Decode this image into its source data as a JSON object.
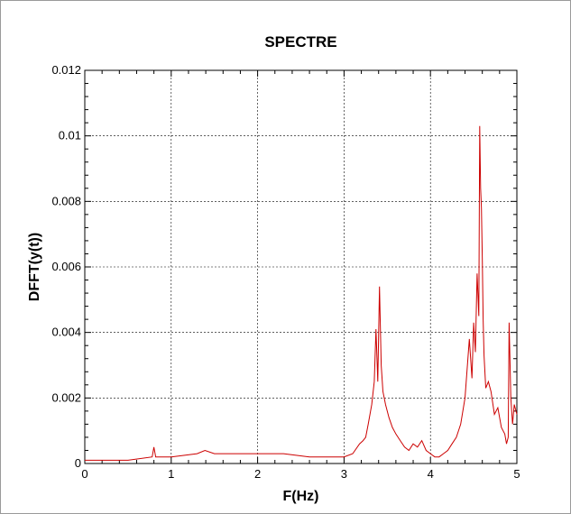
{
  "chart_data": {
    "type": "line",
    "title": "SPECTRE",
    "xlabel": "F(Hz)",
    "ylabel": "DFFT(y(t))",
    "xlim": [
      0,
      5
    ],
    "ylim": [
      0,
      0.012
    ],
    "x_ticks": [
      0,
      1,
      2,
      3,
      4,
      5
    ],
    "x_tick_labels": [
      "0",
      "1",
      "2",
      "3",
      "4",
      "5"
    ],
    "y_ticks": [
      0,
      0.002,
      0.004,
      0.006,
      0.008,
      0.01,
      0.012
    ],
    "y_tick_labels": [
      "0",
      "0.002",
      "0.004",
      "0.006",
      "0.008",
      "0.01",
      "0.012"
    ],
    "grid": true,
    "line_color": "#cc0000",
    "series": [
      {
        "x": [
          0.0,
          0.2,
          0.5,
          0.78,
          0.8,
          0.82,
          1.0,
          1.3,
          1.39,
          1.5,
          1.8,
          2.0,
          2.3,
          2.6,
          2.9,
          3.0,
          3.1,
          3.18,
          3.22,
          3.25,
          3.28,
          3.32,
          3.35,
          3.37,
          3.39,
          3.41,
          3.43,
          3.45,
          3.48,
          3.52,
          3.56,
          3.6,
          3.65,
          3.7,
          3.75,
          3.8,
          3.85,
          3.9,
          3.95,
          4.0,
          4.05,
          4.1,
          4.15,
          4.2,
          4.25,
          4.3,
          4.35,
          4.4,
          4.45,
          4.48,
          4.5,
          4.52,
          4.54,
          4.56,
          4.57,
          4.58,
          4.59,
          4.6,
          4.61,
          4.62,
          4.64,
          4.67,
          4.7,
          4.74,
          4.78,
          4.82,
          4.86,
          4.88,
          4.9,
          4.91,
          4.93,
          4.95,
          4.97,
          5.0
        ],
        "y": [
          0.0001,
          0.0001,
          0.0001,
          0.0002,
          0.0005,
          0.0002,
          0.0002,
          0.0003,
          0.0004,
          0.0003,
          0.0003,
          0.0003,
          0.0003,
          0.0002,
          0.0002,
          0.0002,
          0.0003,
          0.0006,
          0.0007,
          0.0008,
          0.0012,
          0.0018,
          0.0025,
          0.0041,
          0.0025,
          0.0054,
          0.003,
          0.0022,
          0.0018,
          0.0014,
          0.0011,
          0.0009,
          0.0007,
          0.0005,
          0.0004,
          0.0006,
          0.0005,
          0.0007,
          0.0004,
          0.0003,
          0.0002,
          0.0002,
          0.0003,
          0.0004,
          0.0006,
          0.0008,
          0.0012,
          0.002,
          0.0038,
          0.0026,
          0.0043,
          0.0034,
          0.0058,
          0.0045,
          0.0103,
          0.0084,
          0.0078,
          0.0062,
          0.0044,
          0.0033,
          0.0023,
          0.0025,
          0.0022,
          0.0015,
          0.0017,
          0.0011,
          0.0009,
          0.0006,
          0.0008,
          0.0043,
          0.002,
          0.0012,
          0.0018,
          0.0015
        ]
      }
    ]
  }
}
